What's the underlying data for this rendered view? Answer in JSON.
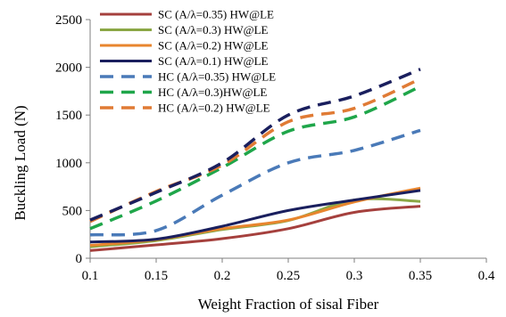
{
  "chart_data": {
    "type": "line",
    "title": "",
    "xlabel": "Weight Fraction of sisal Fiber",
    "ylabel": "Buckling Load (N)",
    "xlim": [
      0.1,
      0.4
    ],
    "ylim": [
      0,
      2500
    ],
    "xticks": [
      0.1,
      0.15,
      0.2,
      0.25,
      0.3,
      0.35,
      0.4
    ],
    "yticks": [
      0,
      500,
      1000,
      1500,
      2000,
      2500
    ],
    "xtick_labels": [
      "0.1",
      "0.15",
      "0.2",
      "0.25",
      "0.3",
      "0.35",
      "0.4"
    ],
    "ytick_labels": [
      "0",
      "500",
      "1000",
      "1500",
      "2000",
      "2500"
    ],
    "grid": false,
    "legend_position": "top-left",
    "series": [
      {
        "name": "SC (A/λ=0.35)  HW@LE",
        "color": "#a5403d",
        "dash": "solid",
        "x": [
          0.1,
          0.15,
          0.2,
          0.25,
          0.3,
          0.35
        ],
        "y": [
          80,
          140,
          205,
          310,
          480,
          545
        ]
      },
      {
        "name": "SC (A/λ=0.3)  HW@LE",
        "color": "#8ba745",
        "dash": "solid",
        "x": [
          0.1,
          0.15,
          0.2,
          0.25,
          0.3,
          0.35
        ],
        "y": [
          120,
          185,
          300,
          395,
          610,
          595
        ]
      },
      {
        "name": "SC (A/λ=0.2) HW@LE",
        "color": "#e8852e",
        "dash": "solid",
        "x": [
          0.1,
          0.15,
          0.2,
          0.25,
          0.3,
          0.35
        ],
        "y": [
          135,
          195,
          310,
          400,
          590,
          735
        ]
      },
      {
        "name": "SC (A/λ=0.1) HW@LE",
        "color": "#1a1f5e",
        "dash": "solid",
        "x": [
          0.1,
          0.15,
          0.2,
          0.25,
          0.3,
          0.35
        ],
        "y": [
          170,
          200,
          335,
          500,
          610,
          710
        ]
      },
      {
        "name": "HC (A/λ=0.35)  HW@LE",
        "color": "#4a7ab8",
        "dash": "dashed",
        "x": [
          0.1,
          0.15,
          0.2,
          0.25,
          0.3,
          0.35
        ],
        "y": [
          245,
          290,
          660,
          1000,
          1130,
          1340
        ]
      },
      {
        "name": "HC (A/λ=0.3)HW@LE",
        "color": "#1fa64a",
        "dash": "dashed",
        "x": [
          0.1,
          0.15,
          0.2,
          0.25,
          0.3,
          0.35
        ],
        "y": [
          310,
          600,
          950,
          1330,
          1480,
          1800
        ]
      },
      {
        "name": "HC (A/λ=0.2) HW@LE",
        "color": "#e07b35",
        "dash": "dashed",
        "x": [
          0.1,
          0.15,
          0.2,
          0.25,
          0.3,
          0.35
        ],
        "y": [
          385,
          700,
          975,
          1430,
          1570,
          1880
        ]
      },
      {
        "name": "",
        "color": "#1a1f5e",
        "dash": "dashed",
        "x": [
          0.1,
          0.15,
          0.2,
          0.25,
          0.3,
          0.35
        ],
        "y": [
          400,
          690,
          1000,
          1500,
          1700,
          1980
        ]
      }
    ]
  }
}
